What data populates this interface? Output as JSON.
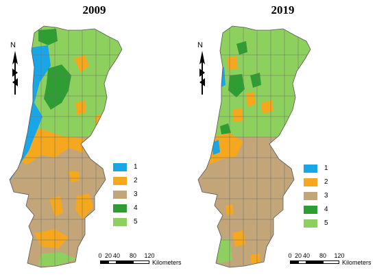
{
  "colors": {
    "class1": "#1aa6e6",
    "class2": "#f5a81d",
    "class3": "#c2a67a",
    "class4": "#2e9e33",
    "class5": "#8ed05e",
    "borders": "#6c6c6c"
  },
  "maps": [
    {
      "year": "2009"
    },
    {
      "year": "2019"
    }
  ],
  "legend": {
    "items": [
      {
        "label": "1",
        "color": "#1aa6e6"
      },
      {
        "label": "2",
        "color": "#f5a81d"
      },
      {
        "label": "3",
        "color": "#c2a67a"
      },
      {
        "label": "4",
        "color": "#2e9e33"
      },
      {
        "label": "5",
        "color": "#8ed05e"
      }
    ]
  },
  "north_arrow": {
    "label": "N",
    "icon": "north-arrow-icon"
  },
  "scale_bar": {
    "ticks": [
      "0",
      "20",
      "40",
      "80",
      "120"
    ],
    "unit": "Kilometers"
  }
}
